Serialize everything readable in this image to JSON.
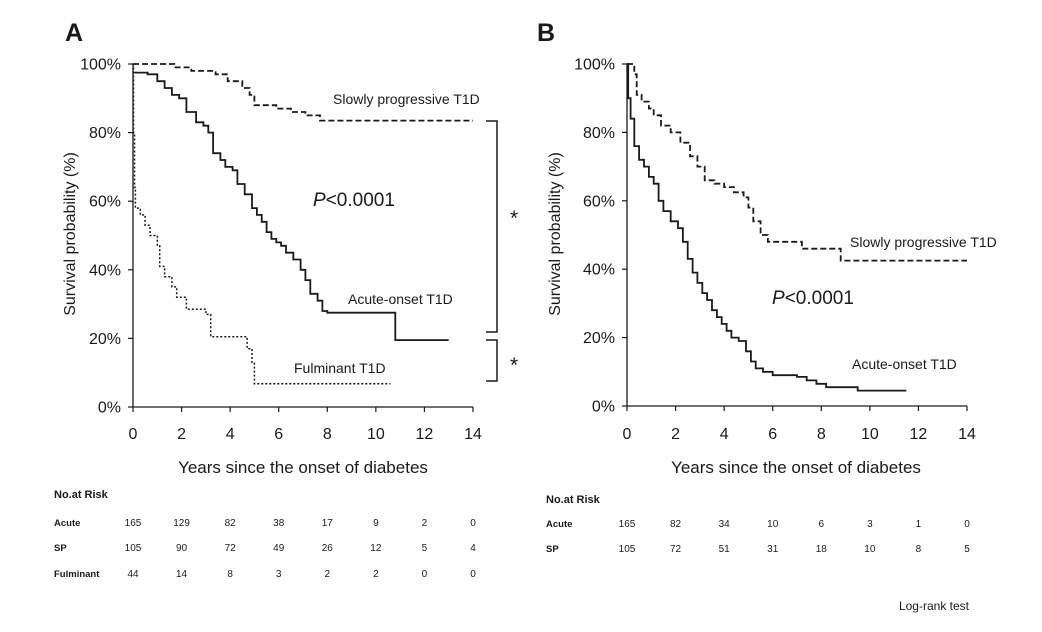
{
  "chart_data": [
    {
      "panel": "A",
      "type": "line",
      "xlabel": "Years since the onset of diabetes",
      "ylabel": "Survival probability (%)",
      "xlim": [
        0,
        14
      ],
      "ylim": [
        0,
        100
      ],
      "xticks": [
        "0",
        "2",
        "4",
        "6",
        "8",
        "10",
        "12",
        "14"
      ],
      "yticks": [
        "0%",
        "20%",
        "40%",
        "60%",
        "80%",
        "100%"
      ],
      "annotation": "P<0.0001",
      "significance_marks": [
        "*",
        "*"
      ],
      "series": [
        {
          "name": "Slowly progressive T1D",
          "style": "dashed",
          "points": [
            [
              0,
              100
            ],
            [
              1.7,
              99
            ],
            [
              2.4,
              98
            ],
            [
              3.4,
              97
            ],
            [
              3.9,
              95
            ],
            [
              4.5,
              93
            ],
            [
              4.8,
              91
            ],
            [
              5.0,
              88
            ],
            [
              5.9,
              87
            ],
            [
              6.5,
              86
            ],
            [
              7.1,
              85
            ],
            [
              7.7,
              83.5
            ],
            [
              14,
              83.5
            ]
          ]
        },
        {
          "name": "Acute-onset T1D",
          "style": "solid",
          "points": [
            [
              0,
              97.5
            ],
            [
              0.6,
              97
            ],
            [
              1.0,
              95
            ],
            [
              1.3,
              93
            ],
            [
              1.6,
              91
            ],
            [
              1.9,
              90
            ],
            [
              2.2,
              86
            ],
            [
              2.6,
              83
            ],
            [
              2.9,
              82
            ],
            [
              3.1,
              80
            ],
            [
              3.3,
              74
            ],
            [
              3.6,
              72
            ],
            [
              3.8,
              70
            ],
            [
              4.1,
              69
            ],
            [
              4.3,
              65
            ],
            [
              4.6,
              62
            ],
            [
              4.9,
              58
            ],
            [
              5.1,
              56
            ],
            [
              5.3,
              54
            ],
            [
              5.5,
              51
            ],
            [
              5.7,
              49
            ],
            [
              5.9,
              48
            ],
            [
              6.1,
              47
            ],
            [
              6.3,
              45
            ],
            [
              6.6,
              43
            ],
            [
              6.9,
              40
            ],
            [
              7.1,
              37
            ],
            [
              7.3,
              33
            ],
            [
              7.6,
              31
            ],
            [
              7.8,
              28
            ],
            [
              8.0,
              27.5
            ],
            [
              10.8,
              27.5
            ],
            [
              10.8,
              19.5
            ],
            [
              13.0,
              19.5
            ]
          ]
        },
        {
          "name": "Fulminant T1D",
          "style": "dotted",
          "points": [
            [
              0,
              100
            ],
            [
              0.02,
              80
            ],
            [
              0.06,
              64
            ],
            [
              0.1,
              58
            ],
            [
              0.3,
              56
            ],
            [
              0.5,
              53
            ],
            [
              0.7,
              50
            ],
            [
              1.0,
              47
            ],
            [
              1.1,
              41
            ],
            [
              1.3,
              38
            ],
            [
              1.6,
              35
            ],
            [
              1.8,
              32
            ],
            [
              2.2,
              28.5
            ],
            [
              2.9,
              28.5
            ],
            [
              3.0,
              27
            ],
            [
              3.2,
              20.5
            ],
            [
              4.6,
              20.5
            ],
            [
              4.7,
              17
            ],
            [
              4.9,
              13
            ],
            [
              5.0,
              6.8
            ],
            [
              10.6,
              6.8
            ]
          ]
        }
      ],
      "risk_table": {
        "title": "No.at Risk",
        "rows": [
          {
            "label": "Acute",
            "values": [
              "165",
              "129",
              "82",
              "38",
              "17",
              "9",
              "2",
              "0"
            ]
          },
          {
            "label": "SP",
            "values": [
              "105",
              "90",
              "72",
              "49",
              "26",
              "12",
              "5",
              "4"
            ]
          },
          {
            "label": "Fulminant",
            "values": [
              "44",
              "14",
              "8",
              "3",
              "2",
              "2",
              "0",
              "0"
            ]
          }
        ]
      }
    },
    {
      "panel": "B",
      "type": "line",
      "xlabel": "Years since the onset of diabetes",
      "ylabel": "Survival probability (%)",
      "xlim": [
        0,
        14
      ],
      "ylim": [
        0,
        100
      ],
      "xticks": [
        "0",
        "2",
        "4",
        "6",
        "8",
        "10",
        "12",
        "14"
      ],
      "yticks": [
        "0%",
        "20%",
        "40%",
        "60%",
        "80%",
        "100%"
      ],
      "annotation": "P<0.0001",
      "series": [
        {
          "name": "Slowly progressive T1D",
          "style": "dashed",
          "points": [
            [
              0,
              100
            ],
            [
              0.3,
              97
            ],
            [
              0.4,
              91
            ],
            [
              0.6,
              89
            ],
            [
              0.9,
              87
            ],
            [
              1.1,
              85
            ],
            [
              1.4,
              82
            ],
            [
              1.8,
              80
            ],
            [
              2.2,
              77
            ],
            [
              2.6,
              73
            ],
            [
              2.9,
              70
            ],
            [
              3.2,
              66
            ],
            [
              3.6,
              65
            ],
            [
              4.0,
              64
            ],
            [
              4.4,
              62.5
            ],
            [
              4.8,
              61
            ],
            [
              5.0,
              58
            ],
            [
              5.2,
              54
            ],
            [
              5.5,
              50
            ],
            [
              5.8,
              48
            ],
            [
              7.0,
              48
            ],
            [
              7.2,
              46
            ],
            [
              8.8,
              46
            ],
            [
              8.8,
              42.5
            ],
            [
              14,
              42.5
            ]
          ]
        },
        {
          "name": "Acute-onset T1D",
          "style": "solid",
          "points": [
            [
              0,
              100
            ],
            [
              0.05,
              90
            ],
            [
              0.15,
              84
            ],
            [
              0.3,
              76
            ],
            [
              0.5,
              72
            ],
            [
              0.7,
              70
            ],
            [
              0.9,
              67
            ],
            [
              1.1,
              65
            ],
            [
              1.3,
              60
            ],
            [
              1.5,
              57
            ],
            [
              1.8,
              54
            ],
            [
              2.1,
              52
            ],
            [
              2.3,
              48
            ],
            [
              2.5,
              43
            ],
            [
              2.7,
              39
            ],
            [
              2.9,
              36
            ],
            [
              3.1,
              33
            ],
            [
              3.3,
              31
            ],
            [
              3.5,
              28
            ],
            [
              3.7,
              26
            ],
            [
              3.9,
              24
            ],
            [
              4.1,
              22
            ],
            [
              4.3,
              20
            ],
            [
              4.6,
              19
            ],
            [
              4.9,
              16
            ],
            [
              5.1,
              13
            ],
            [
              5.3,
              11
            ],
            [
              5.6,
              10
            ],
            [
              6.0,
              9
            ],
            [
              7.0,
              8.5
            ],
            [
              7.4,
              7.5
            ],
            [
              7.8,
              6.5
            ],
            [
              8.2,
              5.5
            ],
            [
              9.5,
              5.5
            ],
            [
              9.5,
              4.5
            ],
            [
              11.5,
              4.5
            ]
          ]
        }
      ],
      "risk_table": {
        "title": "No.at Risk",
        "rows": [
          {
            "label": "Acute",
            "values": [
              "165",
              "82",
              "34",
              "10",
              "6",
              "3",
              "1",
              "0"
            ]
          },
          {
            "label": "SP",
            "values": [
              "105",
              "72",
              "51",
              "31",
              "18",
              "10",
              "8",
              "5"
            ]
          }
        ]
      }
    }
  ],
  "footnote": "Log-rank test"
}
